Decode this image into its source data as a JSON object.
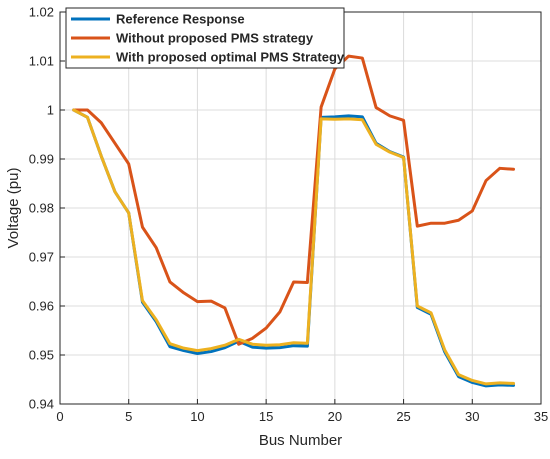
{
  "chart_data": {
    "type": "line",
    "title": "",
    "xlabel": "Bus Number",
    "ylabel": "Voltage (pu)",
    "xlim": [
      0,
      35
    ],
    "ylim": [
      0.94,
      1.02
    ],
    "xticks": [
      "0",
      "5",
      "10",
      "15",
      "20",
      "25",
      "30",
      "35"
    ],
    "yticks": [
      "0.94",
      "0.95",
      "0.96",
      "0.97",
      "0.98",
      "0.99",
      "1",
      "1.01",
      "1.02"
    ],
    "grid": true,
    "legend_position": "top-left",
    "x": [
      1,
      2,
      3,
      4,
      5,
      6,
      7,
      8,
      9,
      10,
      11,
      12,
      13,
      14,
      15,
      16,
      17,
      18,
      19,
      20,
      21,
      22,
      23,
      24,
      25,
      26,
      27,
      28,
      29,
      30,
      31,
      32,
      33
    ],
    "series": [
      {
        "name": "Reference Response",
        "color": "#0072BD",
        "values": [
          1.0,
          0.9985,
          0.9906,
          0.9833,
          0.979,
          0.9608,
          0.9568,
          0.9517,
          0.9509,
          0.9503,
          0.9507,
          0.9515,
          0.9528,
          0.9516,
          0.9514,
          0.9515,
          0.9519,
          0.9518,
          0.9985,
          0.9986,
          0.9988,
          0.9986,
          0.9932,
          0.9915,
          0.9904,
          0.9597,
          0.9583,
          0.9506,
          0.9456,
          0.9444,
          0.9437,
          0.9439,
          0.9438
        ]
      },
      {
        "name": "Without proposed PMS strategy",
        "color": "#D95319",
        "values": [
          1.0,
          1.0,
          0.9974,
          0.9932,
          0.989,
          0.9761,
          0.9719,
          0.9649,
          0.9627,
          0.9609,
          0.961,
          0.9596,
          0.9522,
          0.9534,
          0.9555,
          0.9588,
          0.9649,
          0.9648,
          1.0006,
          1.0084,
          1.011,
          1.0106,
          1.0005,
          0.9988,
          0.9979,
          0.9763,
          0.9769,
          0.9769,
          0.9775,
          0.9794,
          0.9856,
          0.9881,
          0.9879
        ]
      },
      {
        "name": "With proposed optimal PMS Strategy",
        "color": "#EDB120",
        "values": [
          1.0,
          0.9985,
          0.9906,
          0.9833,
          0.979,
          0.9611,
          0.9572,
          0.9523,
          0.9514,
          0.9509,
          0.9513,
          0.952,
          0.9532,
          0.9522,
          0.952,
          0.9521,
          0.9525,
          0.9524,
          0.9982,
          0.9981,
          0.9982,
          0.998,
          0.993,
          0.9914,
          0.9903,
          0.96,
          0.9586,
          0.951,
          0.946,
          0.9448,
          0.9441,
          0.9443,
          0.9442
        ]
      }
    ]
  }
}
